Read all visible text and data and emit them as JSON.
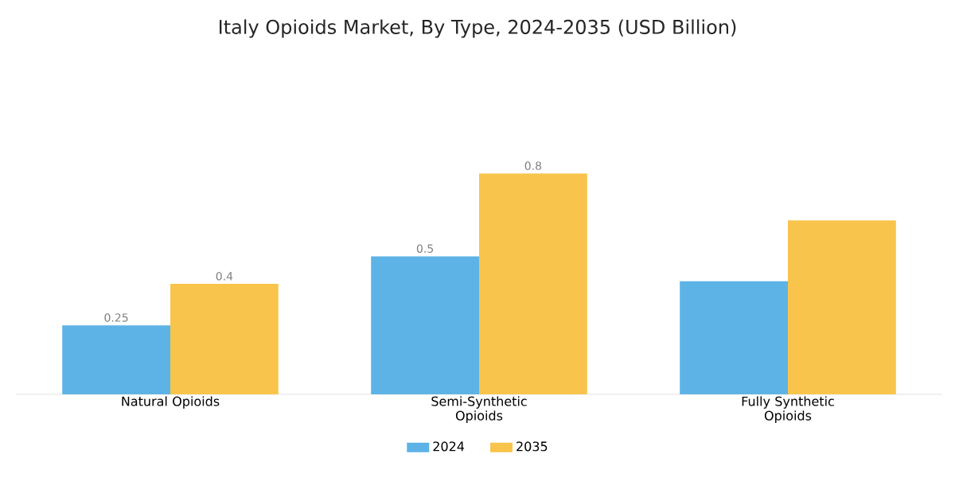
{
  "chart_data": {
    "type": "bar",
    "title": "Italy Opioids Market, By Type, 2024-2035 (USD Billion)",
    "categories": [
      "Natural Opioids",
      "Semi-Synthetic Opioids",
      "Fully Synthetic Opioids"
    ],
    "series": [
      {
        "name": "2024",
        "color": "#5db3e6",
        "values": [
          0.25,
          0.5,
          0.41
        ],
        "value_labels": [
          "0.25",
          "0.5",
          null
        ]
      },
      {
        "name": "2035",
        "color": "#f9c44b",
        "values": [
          0.4,
          0.8,
          0.63
        ],
        "value_labels": [
          "0.4",
          "0.8",
          null
        ]
      }
    ],
    "legend": "bottom"
  }
}
